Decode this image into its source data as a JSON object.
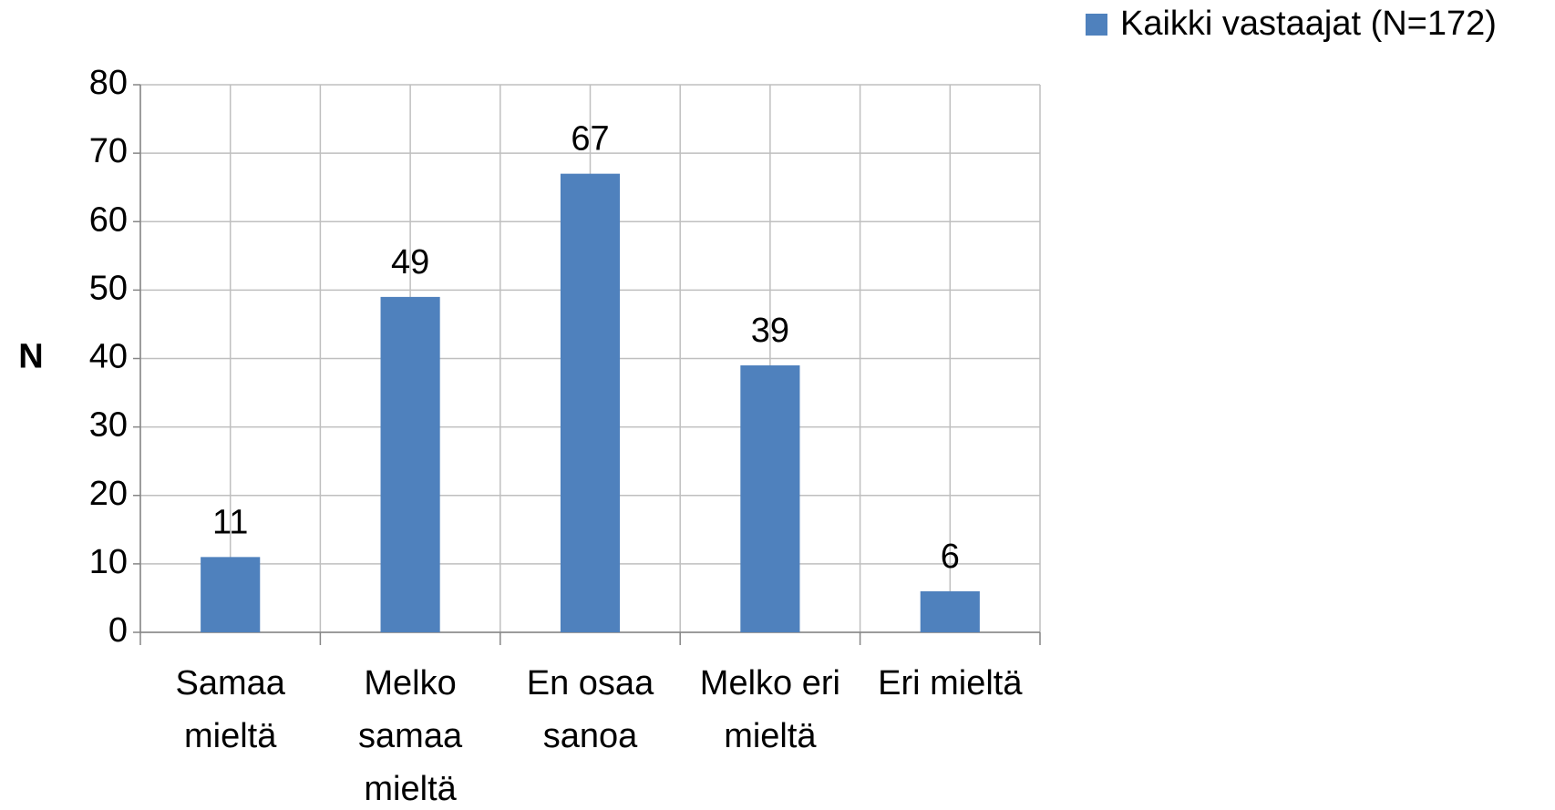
{
  "chart_data": {
    "type": "bar",
    "categories": [
      "Samaa mieltä",
      "Melko samaa mieltä",
      "En osaa sanoa",
      "Melko eri mieltä",
      "Eri mieltä"
    ],
    "series": [
      {
        "name": "Kaikki vastaajat (N=172)",
        "color": "#4f81bd",
        "values": [
          11,
          49,
          67,
          39,
          6
        ]
      }
    ],
    "y_label": "N",
    "ylim": [
      0,
      80
    ],
    "yticks": [
      0,
      10,
      20,
      30,
      40,
      50,
      60,
      70,
      80
    ],
    "grid": true,
    "legend": "top-right"
  }
}
